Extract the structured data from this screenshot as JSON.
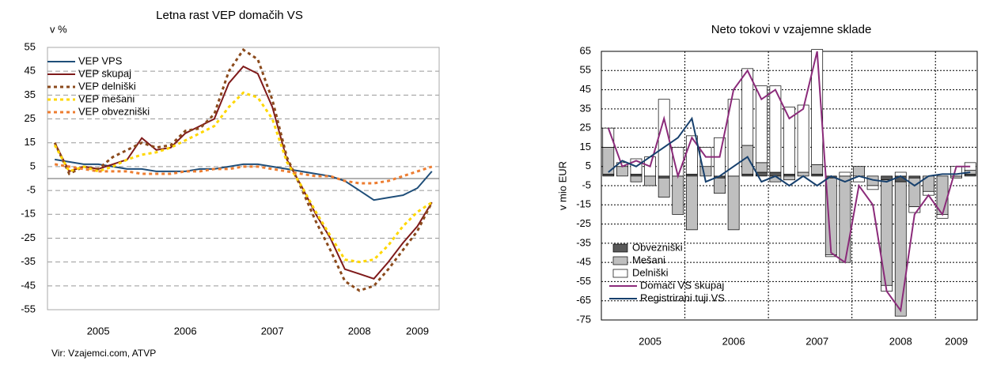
{
  "chart_data": [
    {
      "type": "line",
      "title": "Letna rast VEP domačih VS",
      "y_label": "v %",
      "source": "Vir: Vzajemci.com, ATVP",
      "categories": [
        null,
        null,
        null,
        "2005",
        null,
        null,
        null,
        null,
        null,
        "2006",
        null,
        null,
        null,
        null,
        null,
        "2007",
        null,
        null,
        null,
        null,
        null,
        "2008",
        null,
        null,
        null,
        "2009",
        null
      ],
      "ylim": [
        -55,
        55
      ],
      "yticks": [
        -55,
        -45,
        -35,
        -25,
        -15,
        -5,
        5,
        15,
        25,
        35,
        45,
        55
      ],
      "grid": true,
      "legend": "top-left",
      "series": [
        {
          "name": "VEP VPS",
          "color": "#1f4e79",
          "dashed": false,
          "values": [
            8,
            7,
            6,
            6,
            5,
            4,
            4,
            3,
            3,
            3,
            4,
            4,
            5,
            6,
            6,
            5,
            4,
            3,
            2,
            1,
            -1,
            -5,
            -9,
            -8,
            -7,
            -4,
            3
          ]
        },
        {
          "name": "VEP skupaj",
          "color": "#7f1a1a",
          "dashed": false,
          "values": [
            15,
            3,
            5,
            4,
            6,
            8,
            17,
            12,
            13,
            19,
            22,
            25,
            40,
            47,
            44,
            30,
            8,
            -3,
            -15,
            -25,
            -38,
            -40,
            -42,
            -35,
            -27,
            -20,
            -10
          ]
        },
        {
          "name": "VEP delniški",
          "color": "#8b4a1c",
          "dashed": true,
          "values": [
            15,
            2,
            5,
            4,
            9,
            12,
            15,
            13,
            14,
            20,
            21,
            27,
            45,
            54,
            50,
            33,
            9,
            -4,
            -18,
            -30,
            -43,
            -47,
            -45,
            -38,
            -30,
            -22,
            -10
          ]
        },
        {
          "name": "VEP mešani",
          "color": "#ffd700",
          "dashed": true,
          "values": [
            14,
            3,
            5,
            3,
            5,
            8,
            10,
            11,
            13,
            16,
            19,
            22,
            30,
            36,
            34,
            25,
            7,
            -3,
            -14,
            -24,
            -34,
            -35,
            -34,
            -28,
            -20,
            -14,
            -10
          ]
        },
        {
          "name": "VEP obvezniški",
          "color": "#ed7d31",
          "dashed": true,
          "values": [
            6,
            5,
            4,
            3,
            3,
            3,
            2,
            2,
            2,
            3,
            3,
            4,
            4,
            5,
            5,
            4,
            3,
            2,
            1,
            1,
            -1,
            -2,
            -2,
            -1,
            1,
            3,
            5
          ]
        }
      ]
    },
    {
      "type": "bar",
      "title": "Neto tokovi v vzajemne sklade",
      "y_label": "v mio EUR",
      "categories": [
        null,
        null,
        null,
        "2005",
        null,
        null,
        null,
        null,
        null,
        "2006",
        null,
        null,
        null,
        null,
        null,
        "2007",
        null,
        null,
        null,
        null,
        null,
        "2008",
        null,
        null,
        null,
        "2009",
        null
      ],
      "ylim": [
        -75,
        65
      ],
      "yticks": [
        -75,
        -65,
        -55,
        -45,
        -35,
        -25,
        -15,
        -5,
        5,
        15,
        25,
        35,
        45,
        55,
        65
      ],
      "grid": true,
      "legend": "bottom-left",
      "series": [
        {
          "name": "Obvezniški",
          "color": "#595959",
          "type": "bar",
          "values": [
            1,
            0,
            1,
            0,
            -1,
            0,
            1,
            0,
            -1,
            0,
            1,
            2,
            2,
            1,
            0,
            1,
            -1,
            0,
            0,
            0,
            -2,
            -3,
            -1,
            0,
            0,
            0,
            1
          ]
        },
        {
          "name": "Mešani",
          "color": "#bfbfbf",
          "type": "bar",
          "values": [
            14,
            5,
            -3,
            -5,
            -10,
            -20,
            -28,
            5,
            -8,
            -28,
            15,
            5,
            -3,
            -2,
            2,
            5,
            -40,
            -45,
            5,
            -5,
            -55,
            -70,
            -15,
            -8,
            -20,
            -1,
            2
          ]
        },
        {
          "name": "Delniški",
          "color": "#ffffff",
          "type": "bar",
          "values": [
            10,
            2,
            8,
            10,
            40,
            15,
            20,
            10,
            20,
            40,
            40,
            40,
            45,
            35,
            35,
            60,
            -1,
            2,
            -3,
            -2,
            -3,
            2,
            -3,
            -2,
            -2,
            5,
            4
          ]
        },
        {
          "name": "Domači VS skupaj",
          "color": "#8b2b7a",
          "type": "line",
          "values": [
            25,
            5,
            8,
            5,
            30,
            0,
            20,
            10,
            10,
            45,
            55,
            40,
            45,
            30,
            35,
            65,
            -40,
            -45,
            -5,
            -15,
            -60,
            -70,
            -20,
            -10,
            -20,
            5,
            5
          ]
        },
        {
          "name": "Registrirani tuji VS",
          "color": "#17406d",
          "type": "line",
          "values": [
            2,
            8,
            5,
            10,
            15,
            20,
            30,
            -3,
            0,
            5,
            10,
            -3,
            0,
            -5,
            0,
            -5,
            0,
            -3,
            0,
            -2,
            -3,
            0,
            -5,
            0,
            1,
            1,
            2
          ]
        }
      ]
    }
  ]
}
